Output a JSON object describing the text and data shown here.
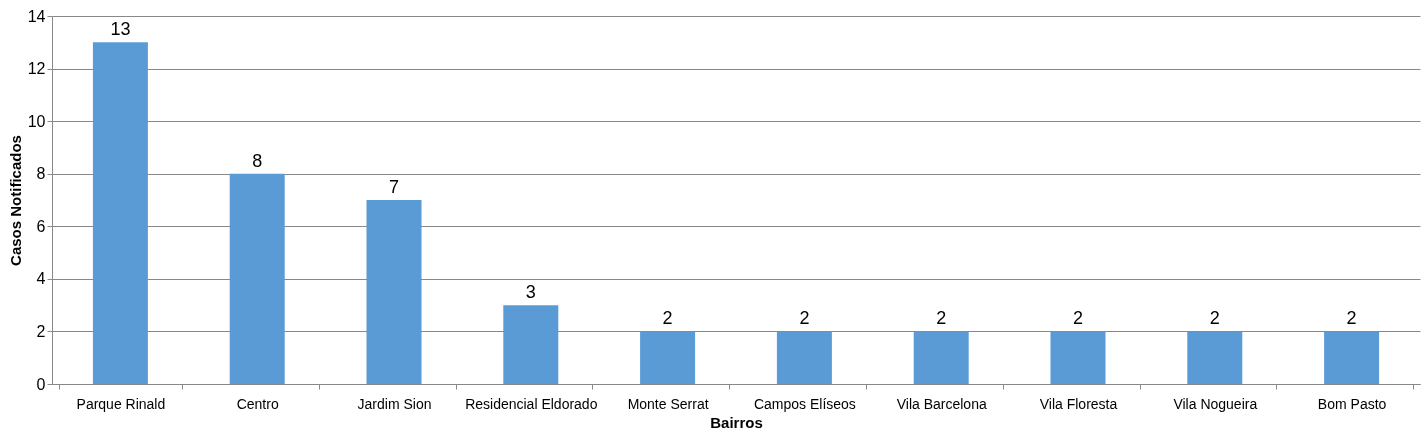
{
  "chart_data": {
    "type": "bar",
    "xlabel": "Bairros",
    "ylabel": "Casos Notificados",
    "categories": [
      "Parque Rinald",
      "Centro",
      "Jardim Sion",
      "Residencial Eldorado",
      "Monte Serrat",
      "Campos Elíseos",
      "Vila Barcelona",
      "Vila Floresta",
      "Vila Nogueira",
      "Bom Pasto"
    ],
    "values": [
      13,
      8,
      7,
      3,
      2,
      2,
      2,
      2,
      2,
      2
    ],
    "color": "#5b9bd5",
    "ylim": [
      0,
      14
    ],
    "yticks": [
      0,
      2,
      4,
      6,
      8,
      10,
      12,
      14
    ],
    "grid": "y",
    "data_labels": true
  }
}
